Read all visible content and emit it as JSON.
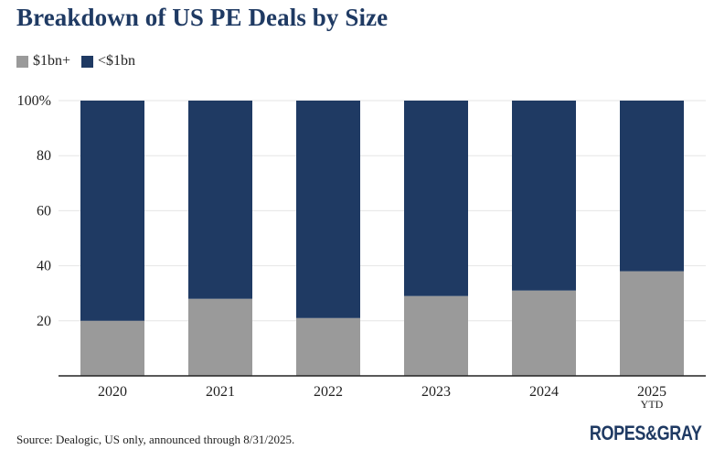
{
  "title": "Breakdown of US PE Deals by Size",
  "colors": {
    "large": "#9a9a9a",
    "small": "#1f3a63",
    "grid": "#e6e6e6",
    "axis": "#222222"
  },
  "legend": [
    {
      "label": "$1bn+",
      "color": "#9a9a9a"
    },
    {
      "label": "<$1bn",
      "color": "#1f3a63"
    }
  ],
  "source": "Source: Dealogic, US only, announced through 8/31/2025.",
  "logo": "ROPES&GRAY",
  "chart_data": {
    "type": "bar",
    "stacked": true,
    "categories": [
      "2020",
      "2021",
      "2022",
      "2023",
      "2024",
      "2025"
    ],
    "category_sublabels": [
      "",
      "",
      "",
      "",
      "",
      "YTD"
    ],
    "series": [
      {
        "name": "$1bn+",
        "values": [
          20,
          28,
          21,
          29,
          31,
          38
        ]
      },
      {
        "name": "<$1bn",
        "values": [
          80,
          72,
          79,
          71,
          69,
          62
        ]
      }
    ],
    "yticks": [
      "20",
      "40",
      "60",
      "80",
      "100%"
    ],
    "ytick_values": [
      20,
      40,
      60,
      80,
      100
    ],
    "ylim": [
      0,
      100
    ],
    "grid": true,
    "legend_position": "top-left"
  }
}
